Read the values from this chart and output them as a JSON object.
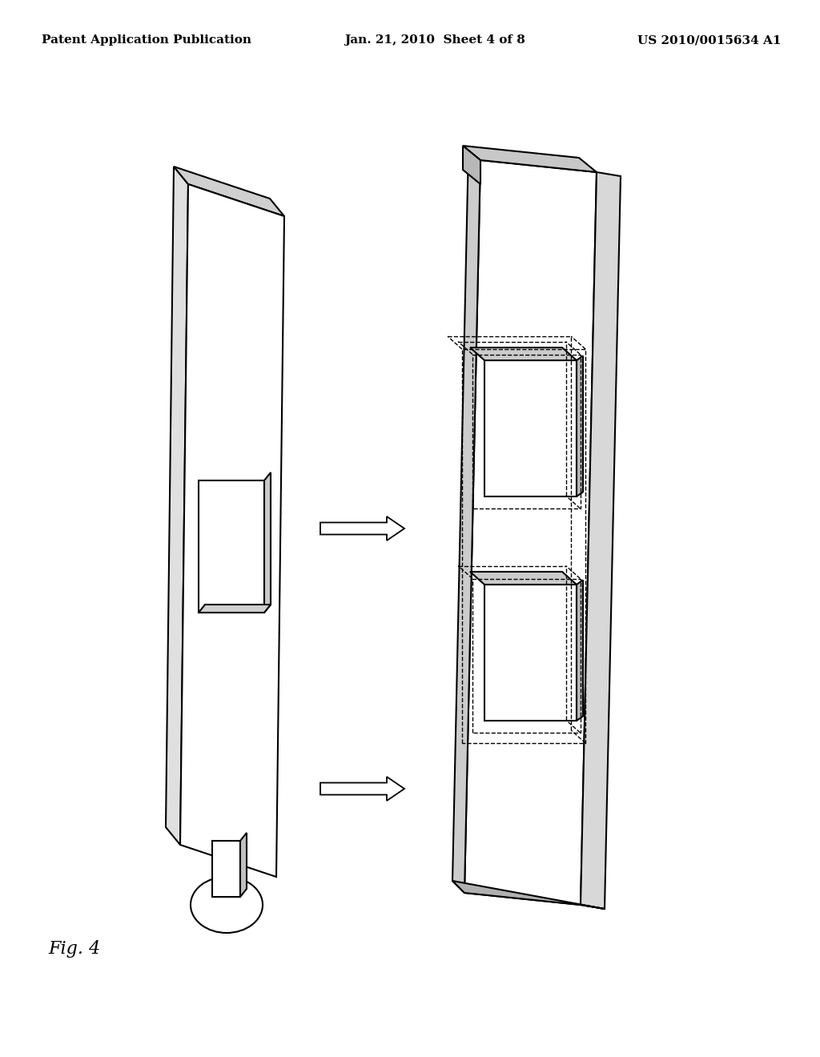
{
  "bg_color": "#ffffff",
  "line_color": "#000000",
  "header_left": "Patent Application Publication",
  "header_center": "Jan. 21, 2010  Sheet 4 of 8",
  "header_right": "US 2010/0015634 A1",
  "fig_label": "Fig. 4",
  "header_fontsize": 11,
  "fig_label_fontsize": 16
}
